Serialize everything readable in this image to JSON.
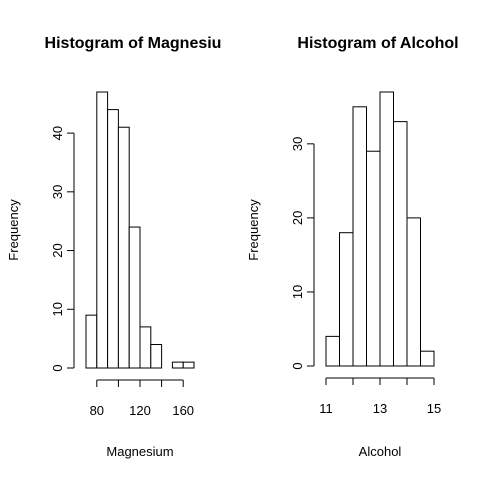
{
  "chart_data": [
    {
      "type": "bar",
      "title": "Histogram of Magnesiu",
      "xlabel": "Magnesium",
      "ylabel": "Frequency",
      "bins": [
        [
          70,
          80
        ],
        [
          80,
          90
        ],
        [
          90,
          100
        ],
        [
          100,
          110
        ],
        [
          110,
          120
        ],
        [
          120,
          130
        ],
        [
          130,
          140
        ],
        [
          140,
          150
        ],
        [
          150,
          160
        ],
        [
          160,
          170
        ]
      ],
      "values": [
        9,
        47,
        44,
        41,
        24,
        7,
        4,
        0,
        1,
        1
      ],
      "xlim": [
        70,
        170
      ],
      "ylim": [
        0,
        47
      ],
      "xticks": [
        80,
        100,
        120,
        140,
        160
      ],
      "xtick_labels": [
        "80",
        "",
        "120",
        "",
        "160"
      ],
      "yticks": [
        0,
        10,
        20,
        30,
        40
      ],
      "ytick_labels": [
        "0",
        "10",
        "20",
        "30",
        "40"
      ],
      "grid": false
    },
    {
      "type": "bar",
      "title": "Histogram of Alcohol",
      "xlabel": "Alcohol",
      "ylabel": "Frequency",
      "bins": [
        [
          11,
          11.5
        ],
        [
          11.5,
          12
        ],
        [
          12,
          12.5
        ],
        [
          12.5,
          13
        ],
        [
          13,
          13.5
        ],
        [
          13.5,
          14
        ],
        [
          14,
          14.5
        ],
        [
          14.5,
          15
        ]
      ],
      "values": [
        4,
        18,
        35,
        29,
        37,
        33,
        20,
        2
      ],
      "xlim": [
        11,
        15
      ],
      "ylim": [
        0,
        37
      ],
      "xticks": [
        11,
        12,
        13,
        14,
        15
      ],
      "xtick_labels": [
        "11",
        "",
        "13",
        "",
        "15"
      ],
      "yticks": [
        0,
        10,
        20,
        30
      ],
      "ytick_labels": [
        "0",
        "10",
        "20",
        "30"
      ],
      "grid": false
    }
  ]
}
